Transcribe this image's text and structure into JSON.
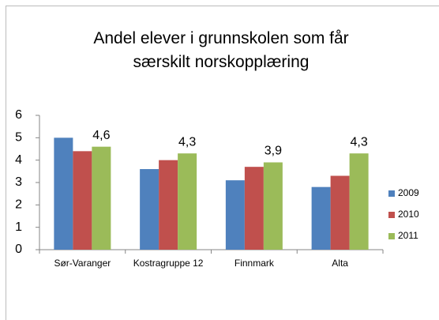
{
  "chart_data": {
    "type": "bar",
    "title": "Andel elever i grunnskolen som får særskilt norskopplæring",
    "categories": [
      "Sør-Varanger",
      "Kostragruppe 12",
      "Finnmark",
      "Alta"
    ],
    "series": [
      {
        "name": "2009",
        "color": "#4f81bd",
        "values": [
          5.0,
          3.6,
          3.1,
          2.8
        ]
      },
      {
        "name": "2010",
        "color": "#c0504d",
        "values": [
          4.4,
          4.0,
          3.7,
          3.3
        ]
      },
      {
        "name": "2011",
        "color": "#9bbb59",
        "values": [
          4.6,
          4.3,
          3.9,
          4.3
        ],
        "value_labels": [
          "4,6",
          "4,3",
          "3,9",
          "4,3"
        ]
      }
    ],
    "ylim": [
      0,
      6
    ],
    "yticks": [
      0,
      1,
      2,
      3,
      4,
      5,
      6
    ],
    "grid": false,
    "legend": "right"
  }
}
